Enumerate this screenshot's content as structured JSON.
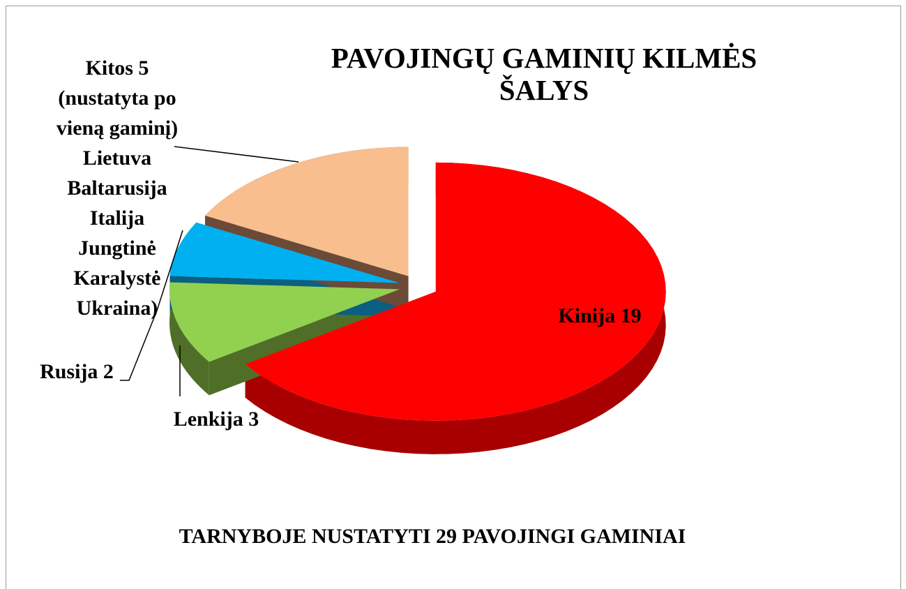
{
  "chart_data": {
    "type": "pie3d",
    "title": "PAVOJINGŲ GAMINIŲ KILMĖS ŠALYS",
    "subtitle": "TARNYBOJE NUSTATYTI 29 PAVOJINGI GAMINIAI",
    "values": [
      19,
      3,
      2,
      5
    ],
    "value_labels": [
      "Kinija 19",
      "Lenkija 3",
      "Rusija 2",
      [
        "Kitos 5",
        "(nustatyta po",
        "vieną gaminį)",
        "Lietuva",
        "Baltarusija",
        "Italija",
        "Jungtinė",
        "Karalystė",
        "Ukraina)"
      ]
    ],
    "colors": [
      "#ff0000",
      "#92d050",
      "#00b0f0",
      "#f8be8e"
    ],
    "side_colors": [
      "#a80000",
      "#4f6f28",
      "#0b5f80",
      "#6b4a38"
    ]
  }
}
